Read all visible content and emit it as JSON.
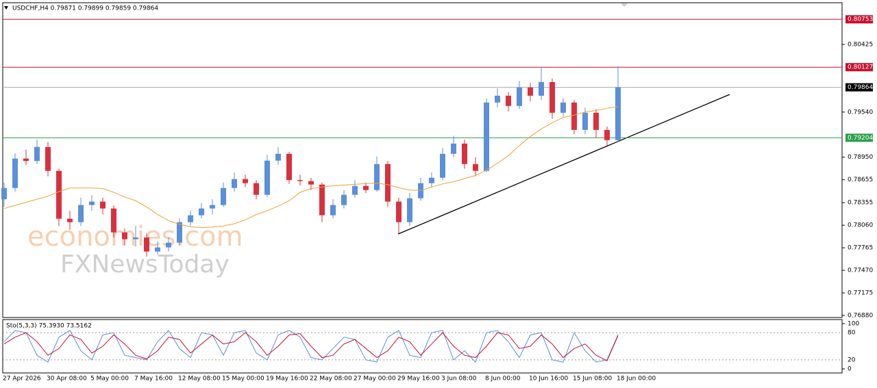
{
  "chart_data": [
    {
      "type": "candlestick",
      "title": "USDCHF,H4  0.79871 0.79899 0.79859 0.79864",
      "annotations": [
        "economies.com",
        "FXNewsToday"
      ],
      "categories": [
        "27 Apr 2026",
        null,
        null,
        null,
        "30 Apr 08:00",
        null,
        null,
        null,
        "5 May 00:00",
        null,
        null,
        null,
        "7 May 16:00",
        null,
        null,
        null,
        "12 May 08:00",
        null,
        null,
        null,
        "15 May 00:00",
        null,
        null,
        null,
        "19 May 16:00",
        null,
        null,
        null,
        "22 May 08:00",
        null,
        null,
        null,
        "27 May 00:00",
        null,
        null,
        null,
        "29 May 16:00",
        null,
        null,
        null,
        "3 Jun 08:00",
        null,
        null,
        null,
        "8 Jun 00:00",
        null,
        null,
        null,
        "10 Jun 16:00",
        null,
        null,
        null,
        "15 Jun 08:00",
        null,
        null,
        null,
        "18 Jun 00:00"
      ],
      "open": [
        0.784,
        0.78547,
        0.78932,
        0.789,
        0.79084,
        0.78771,
        0.78145,
        0.781,
        0.78324,
        0.78369,
        0.78279,
        0.77966,
        0.77877,
        0.779,
        0.77716,
        0.7777,
        0.77832,
        0.781,
        0.7819,
        0.78279,
        0.78324,
        0.78547,
        0.78664,
        0.7861,
        0.78458,
        0.78905,
        0.78994,
        0.7865,
        0.78637,
        0.78592,
        0.7819,
        0.78324,
        0.78458,
        0.78574,
        0.7852,
        0.7886,
        0.78369,
        0.781,
        0.78413,
        0.7861,
        0.78681,
        0.78994,
        0.79128,
        0.7886,
        0.78771,
        0.79665,
        0.79754,
        0.7962,
        0.79861,
        0.79754,
        0.79933,
        0.79531,
        0.79665,
        0.79307,
        0.79531,
        0.79307,
        0.79173
      ],
      "high": [
        0.7862,
        0.79,
        0.7905,
        0.7918,
        0.7915,
        0.788,
        0.7825,
        0.7842,
        0.7845,
        0.7842,
        0.7832,
        0.7802,
        0.7805,
        0.7795,
        0.7785,
        0.779,
        0.7815,
        0.7825,
        0.7835,
        0.784,
        0.7862,
        0.7875,
        0.7872,
        0.7865,
        0.7898,
        0.7908,
        0.7902,
        0.7872,
        0.7868,
        0.7862,
        0.784,
        0.7852,
        0.7865,
        0.7862,
        0.7896,
        0.789,
        0.7842,
        0.7848,
        0.7868,
        0.7875,
        0.7907,
        0.7923,
        0.7918,
        0.7895,
        0.7972,
        0.7985,
        0.798,
        0.7995,
        0.7992,
        0.80127,
        0.7998,
        0.7972,
        0.797,
        0.796,
        0.7958,
        0.7935,
        0.8014
      ],
      "low": [
        0.783,
        0.785,
        0.7885,
        0.7886,
        0.787,
        0.7805,
        0.78,
        0.7805,
        0.7825,
        0.782,
        0.779,
        0.778,
        0.7778,
        0.7765,
        0.7768,
        0.7772,
        0.778,
        0.7805,
        0.7815,
        0.782,
        0.783,
        0.785,
        0.7856,
        0.784,
        0.7843,
        0.7885,
        0.786,
        0.7858,
        0.7852,
        0.781,
        0.7815,
        0.7828,
        0.7842,
        0.7848,
        0.785,
        0.783,
        0.7795,
        0.7805,
        0.7838,
        0.7855,
        0.7865,
        0.7895,
        0.788,
        0.787,
        0.7875,
        0.796,
        0.7955,
        0.7958,
        0.7968,
        0.797,
        0.7945,
        0.7948,
        0.7925,
        0.7925,
        0.792,
        0.791,
        0.7915
      ],
      "close": [
        0.78547,
        0.78932,
        0.789,
        0.79084,
        0.78771,
        0.78145,
        0.781,
        0.78324,
        0.78369,
        0.78279,
        0.77966,
        0.77877,
        0.779,
        0.77716,
        0.7777,
        0.77832,
        0.781,
        0.7819,
        0.78279,
        0.78324,
        0.78547,
        0.78664,
        0.7861,
        0.78458,
        0.78905,
        0.78994,
        0.7865,
        0.78637,
        0.78592,
        0.7819,
        0.78324,
        0.78458,
        0.78574,
        0.7852,
        0.7886,
        0.78369,
        0.781,
        0.78413,
        0.7861,
        0.78681,
        0.78994,
        0.79128,
        0.7886,
        0.78771,
        0.79665,
        0.79754,
        0.7962,
        0.79861,
        0.79754,
        0.79933,
        0.79531,
        0.79665,
        0.79307,
        0.79531,
        0.79307,
        0.79173,
        0.79864
      ],
      "up_color": "#5b8fd9",
      "down_color": "#d9303e",
      "series": [
        {
          "type": "line",
          "color": "#f0a030",
          "values": [
            0.78279,
            0.7832,
            0.7836,
            0.784,
            0.7844,
            0.785,
            0.78547,
            0.78547,
            0.78547,
            0.7854,
            0.7849,
            0.7843,
            0.7838,
            0.783,
            0.782,
            0.7812,
            0.7807,
            0.7804,
            0.7803,
            0.78035,
            0.7805,
            0.7808,
            0.7813,
            0.782,
            0.7825,
            0.7831,
            0.7838,
            0.7849,
            0.7854,
            0.7856,
            0.78576,
            0.78585,
            0.78595,
            0.78605,
            0.7861,
            0.7859,
            0.7855,
            0.7852,
            0.78515,
            0.7856,
            0.786,
            0.7863,
            0.7867,
            0.7871,
            0.7878,
            0.7887,
            0.7897,
            0.791,
            0.7922,
            0.7932,
            0.794,
            0.7947,
            0.795,
            0.7954,
            0.7956,
            0.7959,
            0.79611
          ]
        }
      ],
      "levels": [
        {
          "value": 0.80753,
          "color": "#c8102e"
        },
        {
          "value": 0.80127,
          "color": "#c8102e"
        },
        {
          "value": 0.79864,
          "color": "#000000"
        },
        {
          "value": 0.79204,
          "color": "#2e9e4f"
        }
      ],
      "ylim": [
        0.76853,
        0.8097
      ],
      "yticks": [
        0.80425,
        {
          "value": 0.7954,
          "label": "0.79540"
        },
        {
          "value": 0.7895,
          "label": "0.78950"
        },
        0.78655,
        0.78355,
        {
          "value": 0.7806,
          "label": "0.78060"
        },
        0.77765,
        {
          "value": 0.7747,
          "label": "0.77470"
        },
        0.77175,
        {
          "value": 0.7688,
          "label": "0.76880"
        }
      ]
    },
    {
      "type": "line",
      "title": "Sto(5,3,3) 75.3930 73.5162",
      "series": [
        {
          "color": "#5b8fd9",
          "values": [
            60,
            85,
            80,
            30,
            15,
            70,
            85,
            40,
            20,
            75,
            80,
            30,
            25,
            20,
            60,
            85,
            45,
            25,
            80,
            75,
            30,
            80,
            85,
            35,
            20,
            75,
            85,
            70,
            25,
            20,
            45,
            70,
            65,
            20,
            15,
            70,
            85,
            30,
            25,
            80,
            85,
            20,
            40,
            15,
            80,
            85,
            60,
            25,
            75,
            80,
            20,
            15,
            80,
            40,
            15,
            20,
            75.393
          ]
        },
        {
          "color": "#c8102e",
          "values": [
            55,
            70,
            80,
            60,
            30,
            45,
            75,
            65,
            35,
            50,
            75,
            55,
            30,
            22,
            40,
            70,
            65,
            35,
            55,
            75,
            55,
            60,
            80,
            60,
            30,
            50,
            75,
            78,
            50,
            25,
            30,
            55,
            65,
            45,
            25,
            40,
            70,
            60,
            30,
            55,
            80,
            50,
            30,
            25,
            50,
            80,
            75,
            45,
            50,
            75,
            55,
            25,
            45,
            55,
            30,
            18,
            73.5162
          ]
        }
      ],
      "ylim": [
        -9,
        109
      ],
      "yticks": [
        100,
        80,
        20,
        0
      ]
    }
  ]
}
